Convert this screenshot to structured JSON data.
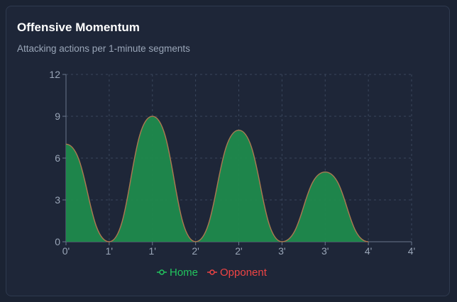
{
  "card": {
    "title": "Offensive Momentum",
    "subtitle": "Attacking actions per 1-minute segments"
  },
  "chart_data": {
    "type": "area",
    "title": "Offensive Momentum",
    "subtitle": "Attacking actions per 1-minute segments",
    "x_tick_labels": [
      "0'",
      "1'",
      "1'",
      "2'",
      "2'",
      "3'",
      "3'",
      "4'",
      "4'"
    ],
    "x": [
      0,
      0.5,
      1,
      1.5,
      2,
      2.5,
      3,
      3.5,
      4
    ],
    "xlim": [
      0,
      4
    ],
    "ylim": [
      0,
      12
    ],
    "y_ticks": [
      0,
      3,
      6,
      9,
      12
    ],
    "grid": true,
    "legend_position": "bottom-center",
    "series": [
      {
        "name": "Home",
        "color": "#22c55e",
        "fill": "#1f8a4c",
        "values": [
          7,
          0,
          9,
          0,
          8,
          0,
          5,
          0,
          null
        ]
      },
      {
        "name": "Opponent",
        "color": "#ef4444",
        "values": [
          7,
          0,
          9,
          0,
          8,
          0,
          5,
          0,
          null
        ]
      }
    ]
  }
}
